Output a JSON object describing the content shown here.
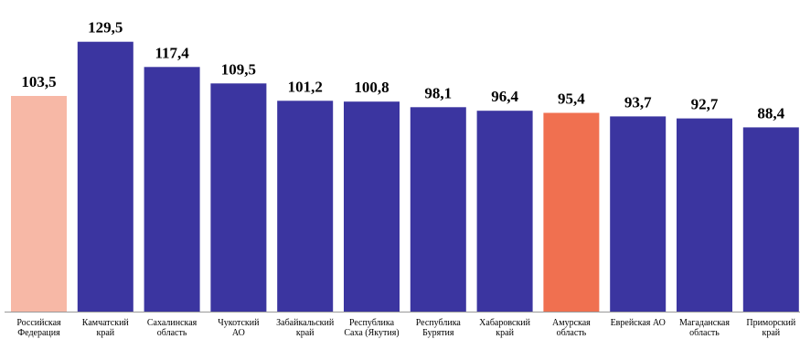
{
  "chart_data": {
    "type": "bar",
    "title": "",
    "xlabel": "",
    "ylabel": "",
    "ylim": [
      0,
      135
    ],
    "grid": false,
    "legend": "none",
    "decimal_separator": ",",
    "categories": [
      [
        "Российская",
        "Федерация"
      ],
      [
        "Камчатский",
        "край"
      ],
      [
        "Сахалинская",
        "область"
      ],
      [
        "Чукотский",
        "АО"
      ],
      [
        "Забайкальский",
        "край"
      ],
      [
        "Республика",
        "Саха (Якутия)"
      ],
      [
        "Республика",
        "Бурятия"
      ],
      [
        "Хабаровский",
        "край"
      ],
      [
        "Амурская",
        "область"
      ],
      [
        "Еврейская АО"
      ],
      [
        "Магаданская",
        "область"
      ],
      [
        "Приморский",
        "край"
      ]
    ],
    "values": [
      103.5,
      129.5,
      117.4,
      109.5,
      101.2,
      100.8,
      98.1,
      96.4,
      95.4,
      93.7,
      92.7,
      88.4
    ],
    "value_labels": [
      "103,5",
      "129,5",
      "117,4",
      "109,5",
      "101,2",
      "100,8",
      "98,1",
      "96,4",
      "95,4",
      "93,7",
      "92,7",
      "88,4"
    ],
    "colors": [
      "#f7b8a6",
      "#3b35a0",
      "#3b35a0",
      "#3b35a0",
      "#3b35a0",
      "#3b35a0",
      "#3b35a0",
      "#3b35a0",
      "#f07050",
      "#3b35a0",
      "#3b35a0",
      "#3b35a0"
    ],
    "axis_color": "#999999"
  }
}
